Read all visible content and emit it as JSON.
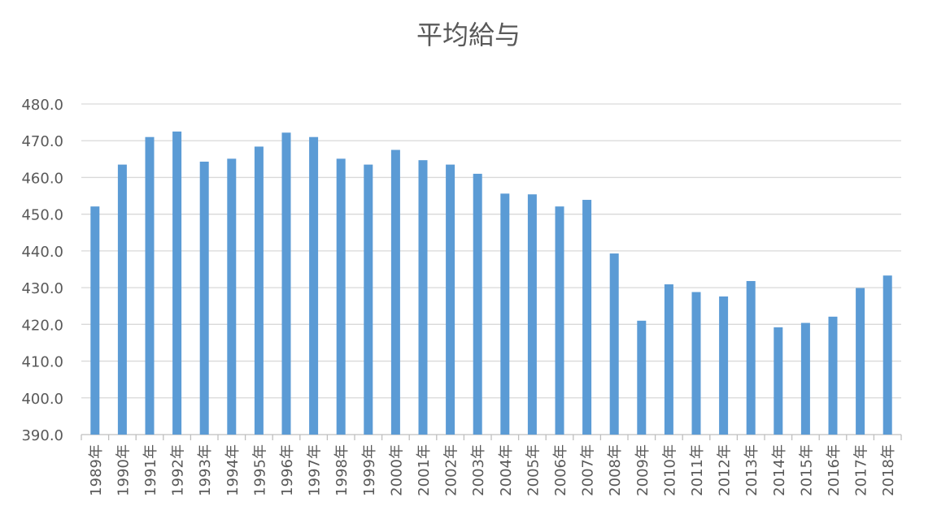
{
  "chart_data": {
    "type": "bar",
    "title": "平均給与",
    "xlabel": "",
    "ylabel": "",
    "ylim": [
      390,
      480
    ],
    "ytick_step": 10,
    "ytick_labels": [
      "390.0",
      "400.0",
      "410.0",
      "420.0",
      "430.0",
      "440.0",
      "450.0",
      "460.0",
      "470.0",
      "480.0"
    ],
    "grid": true,
    "legend": "none",
    "bar_color": "#5B9BD5",
    "grid_color": "#D9D9D9",
    "categories": [
      "1989年",
      "1990年",
      "1991年",
      "1992年",
      "1993年",
      "1994年",
      "1995年",
      "1996年",
      "1997年",
      "1998年",
      "1999年",
      "2000年",
      "2001年",
      "2002年",
      "2003年",
      "2004年",
      "2005年",
      "2006年",
      "2007年",
      "2008年",
      "2009年",
      "2010年",
      "2011年",
      "2012年",
      "2013年",
      "2014年",
      "2015年",
      "2016年",
      "2017年",
      "2018年"
    ],
    "values": [
      452.1,
      463.5,
      471.0,
      472.5,
      464.3,
      465.1,
      468.4,
      472.2,
      471.0,
      465.1,
      463.5,
      467.5,
      464.7,
      463.5,
      461.0,
      455.6,
      455.4,
      452.1,
      453.9,
      439.3,
      421.0,
      430.9,
      428.8,
      427.6,
      431.8,
      419.2,
      420.4,
      422.1,
      429.9,
      433.3
    ]
  }
}
